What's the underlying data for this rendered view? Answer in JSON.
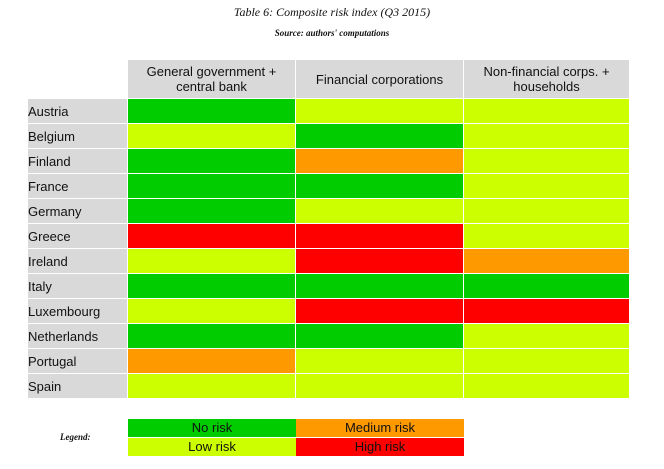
{
  "title": "Table 6: Composite risk index (Q3 2015)",
  "source": "Source: authors' computations",
  "columns": [
    "General government + central bank",
    "Financial corporations",
    "Non-financial corps. + households"
  ],
  "rows": [
    {
      "country": "Austria",
      "levels": [
        "no-risk",
        "low-risk",
        "low-risk"
      ]
    },
    {
      "country": "Belgium",
      "levels": [
        "low-risk",
        "no-risk",
        "low-risk"
      ]
    },
    {
      "country": "Finland",
      "levels": [
        "no-risk",
        "medium-risk",
        "low-risk"
      ]
    },
    {
      "country": "France",
      "levels": [
        "no-risk",
        "no-risk",
        "low-risk"
      ]
    },
    {
      "country": "Germany",
      "levels": [
        "no-risk",
        "low-risk",
        "low-risk"
      ]
    },
    {
      "country": "Greece",
      "levels": [
        "high-risk",
        "high-risk",
        "low-risk"
      ]
    },
    {
      "country": "Ireland",
      "levels": [
        "low-risk",
        "high-risk",
        "medium-risk"
      ]
    },
    {
      "country": "Italy",
      "levels": [
        "no-risk",
        "no-risk",
        "no-risk"
      ]
    },
    {
      "country": "Luxembourg",
      "levels": [
        "low-risk",
        "high-risk",
        "high-risk"
      ]
    },
    {
      "country": "Netherlands",
      "levels": [
        "no-risk",
        "no-risk",
        "low-risk"
      ]
    },
    {
      "country": "Portugal",
      "levels": [
        "medium-risk",
        "low-risk",
        "low-risk"
      ]
    },
    {
      "country": "Spain",
      "levels": [
        "low-risk",
        "low-risk",
        "low-risk"
      ]
    }
  ],
  "legend": {
    "label": "Legend:",
    "no_risk": "No risk",
    "medium_risk": "Medium risk",
    "low_risk": "Low risk",
    "high_risk": "High risk"
  },
  "colors": {
    "no-risk": "#00cc00",
    "low-risk": "#ccff00",
    "medium-risk": "#ff9900",
    "high-risk": "#ff0000"
  }
}
